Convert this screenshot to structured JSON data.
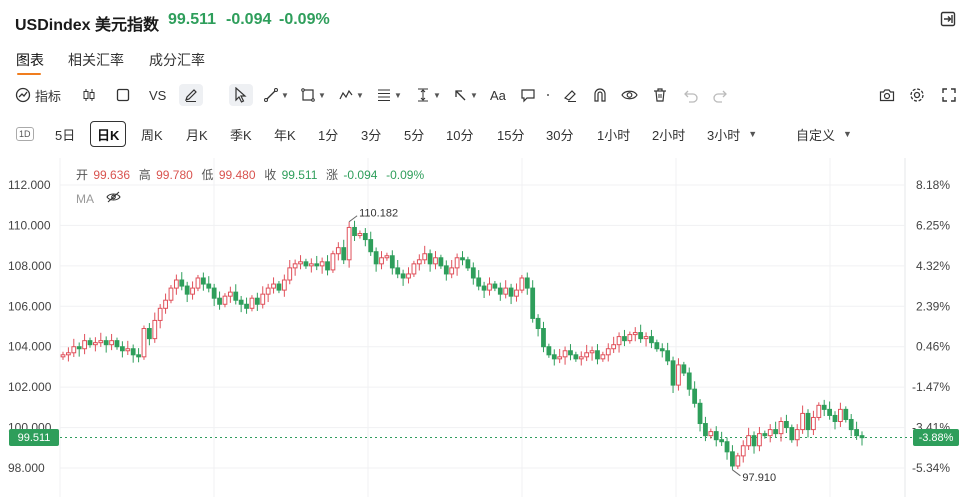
{
  "header": {
    "title": "USDindex 美元指数",
    "price": "99.511",
    "change": "-0.094",
    "change_pct": "-0.09%",
    "exit_icon": "exit-fullscreen-icon"
  },
  "tabs": [
    {
      "label": "图表",
      "active": true
    },
    {
      "label": "相关汇率",
      "active": false
    },
    {
      "label": "成分汇率",
      "active": false
    }
  ],
  "toolbar": {
    "indicator_label": "指标",
    "vs_label": "VS",
    "text_label": "Aa",
    "icons": [
      "indicator-icon",
      "candle-icon",
      "square-icon",
      "pencil-icon",
      "cursor-icon",
      "line-icon",
      "rect-icon",
      "pattern-icon",
      "fib-icon",
      "measure-icon",
      "arrow-icon",
      "text-icon",
      "comment-icon",
      "dot-icon",
      "eraser-icon",
      "magnet-icon",
      "eye-icon",
      "trash-icon",
      "undo-icon",
      "redo-icon",
      "camera-icon",
      "settings-icon",
      "fullscreen-icon"
    ]
  },
  "periods": {
    "first_badge": "1D",
    "items": [
      "5日",
      "日K",
      "周K",
      "月K",
      "季K",
      "年K",
      "1分",
      "3分",
      "5分",
      "10分",
      "15分",
      "30分",
      "1小时",
      "2小时",
      "3小时",
      "自定义"
    ],
    "active": "日K"
  },
  "ohlc": {
    "open_label": "开",
    "open": "99.636",
    "high_label": "高",
    "high": "99.780",
    "low_label": "低",
    "low": "99.480",
    "close_label": "收",
    "close": "99.511",
    "chg_label": "涨",
    "chg": "-0.094",
    "chg_pct": "-0.09%"
  },
  "ma_label": "MA",
  "current_price_tag": "99.511",
  "current_pct_tag": "-3.88%",
  "chart_data": {
    "type": "candlestick",
    "ylim": [
      97.0,
      112.6
    ],
    "y_ticks": [
      "112.000",
      "110.000",
      "108.000",
      "106.000",
      "104.000",
      "102.000",
      "100.000",
      "98.000"
    ],
    "y_tick_values": [
      112,
      110,
      108,
      106,
      104,
      102,
      100,
      98
    ],
    "pct_ticks": [
      "8.18%",
      "6.25%",
      "4.32%",
      "2.39%",
      "0.46%",
      "-1.47%",
      "-3.41%",
      "-5.34%"
    ],
    "high_annotation": "110.182",
    "low_annotation": "97.910",
    "high_index": 53,
    "low_index": 124,
    "current_price": 99.511,
    "colors": {
      "up": "#e0505a",
      "down": "#2e9e5b"
    },
    "closes": [
      103.6,
      103.7,
      104.0,
      103.9,
      104.3,
      104.1,
      104.2,
      104.3,
      104.1,
      104.3,
      104.0,
      103.8,
      103.9,
      103.6,
      103.5,
      104.9,
      104.4,
      105.3,
      105.9,
      106.3,
      106.9,
      107.3,
      107.0,
      106.6,
      106.9,
      107.4,
      107.1,
      106.9,
      106.4,
      106.1,
      106.5,
      106.7,
      106.3,
      106.1,
      105.9,
      106.4,
      106.1,
      106.6,
      106.9,
      107.1,
      106.8,
      107.3,
      107.9,
      108.1,
      108.2,
      108.0,
      108.1,
      108.0,
      108.2,
      107.8,
      108.6,
      108.9,
      108.3,
      109.9,
      109.5,
      109.6,
      109.3,
      108.7,
      108.1,
      108.4,
      108.5,
      107.9,
      107.6,
      107.4,
      107.6,
      108.1,
      108.3,
      108.6,
      108.1,
      108.4,
      108.0,
      107.6,
      107.9,
      108.4,
      108.3,
      107.9,
      107.4,
      107.0,
      106.8,
      107.1,
      106.9,
      106.6,
      106.9,
      106.5,
      106.8,
      107.4,
      106.9,
      105.4,
      104.9,
      104.0,
      103.6,
      103.4,
      103.5,
      103.8,
      103.6,
      103.4,
      103.5,
      103.7,
      103.8,
      103.4,
      103.6,
      103.9,
      104.1,
      104.5,
      104.3,
      104.6,
      104.7,
      104.4,
      104.5,
      104.2,
      103.9,
      103.8,
      103.3,
      102.1,
      103.1,
      102.7,
      101.9,
      101.2,
      100.2,
      99.6,
      99.8,
      99.4,
      99.3,
      98.8,
      98.1,
      98.6,
      99.1,
      99.6,
      99.1,
      99.7,
      99.6,
      99.9,
      99.7,
      100.3,
      100.0,
      99.4,
      99.9,
      100.7,
      99.9,
      100.5,
      101.1,
      100.9,
      100.6,
      100.3,
      100.9,
      100.4,
      99.9,
      99.6,
      99.5
    ],
    "opens": [
      103.5,
      103.6,
      103.7,
      104.0,
      103.9,
      104.3,
      104.1,
      104.2,
      104.3,
      104.1,
      104.3,
      104.0,
      103.8,
      103.9,
      103.6,
      103.5,
      104.9,
      104.4,
      105.3,
      105.9,
      106.3,
      106.9,
      107.3,
      107.0,
      106.6,
      106.9,
      107.4,
      107.1,
      106.9,
      106.4,
      106.1,
      106.5,
      106.7,
      106.3,
      106.1,
      105.9,
      106.4,
      106.1,
      106.6,
      106.9,
      107.1,
      106.8,
      107.3,
      107.9,
      108.1,
      108.2,
      108.0,
      108.1,
      108.0,
      108.2,
      107.8,
      108.6,
      108.9,
      108.3,
      109.9,
      109.5,
      109.6,
      109.3,
      108.7,
      108.1,
      108.4,
      108.5,
      107.9,
      107.6,
      107.4,
      107.6,
      108.1,
      108.3,
      108.6,
      108.1,
      108.4,
      108.0,
      107.6,
      107.9,
      108.4,
      108.3,
      107.9,
      107.4,
      107.0,
      106.8,
      107.1,
      106.9,
      106.6,
      106.9,
      106.5,
      106.8,
      107.4,
      106.9,
      105.4,
      104.9,
      104.0,
      103.6,
      103.4,
      103.5,
      103.8,
      103.6,
      103.4,
      103.5,
      103.7,
      103.8,
      103.4,
      103.6,
      103.9,
      104.1,
      104.5,
      104.3,
      104.6,
      104.7,
      104.4,
      104.5,
      104.2,
      103.9,
      103.8,
      103.3,
      102.1,
      103.1,
      102.7,
      101.9,
      101.2,
      100.2,
      99.6,
      99.8,
      99.4,
      99.3,
      98.8,
      98.1,
      98.6,
      99.1,
      99.6,
      99.1,
      99.7,
      99.6,
      99.9,
      99.7,
      100.3,
      100.0,
      99.4,
      99.9,
      100.7,
      99.9,
      100.5,
      101.1,
      100.9,
      100.6,
      100.3,
      100.9,
      100.4,
      99.9,
      99.6
    ]
  }
}
